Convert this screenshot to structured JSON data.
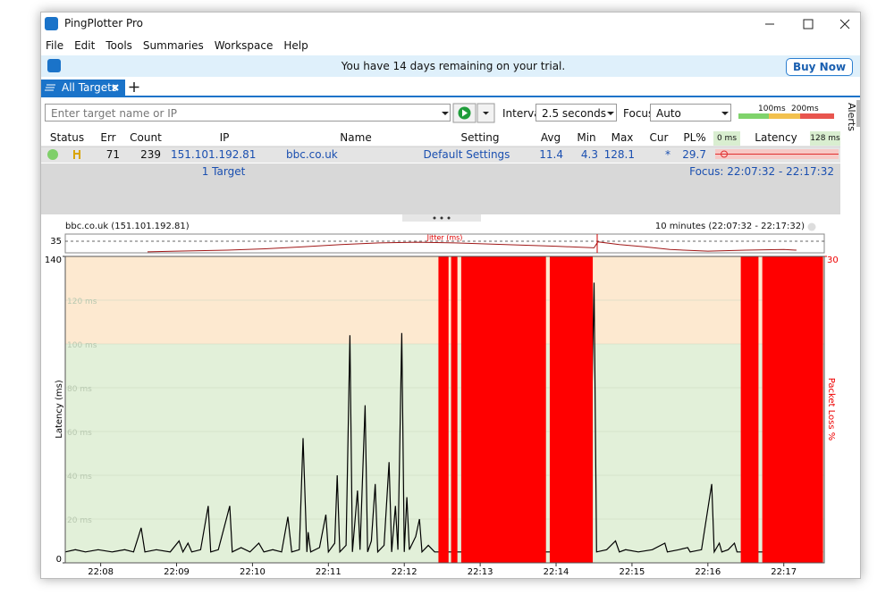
{
  "window": {
    "title": "PingPlotter Pro"
  },
  "menu": [
    "File",
    "Edit",
    "Tools",
    "Summaries",
    "Workspace",
    "Help"
  ],
  "trial": {
    "message": "You have 14 days remaining on your trial.",
    "button": "Buy Now"
  },
  "tabs": {
    "active": "All Targets"
  },
  "side_tab": "Alerts",
  "toolbar": {
    "target_placeholder": "Enter target name or IP",
    "interval_label": "Interval",
    "interval": "2.5 seconds",
    "focus_label": "Focus",
    "focus": "Auto",
    "scale": [
      "100ms",
      "200ms"
    ]
  },
  "table": {
    "columns": [
      "Status",
      "Err",
      "Count",
      "IP",
      "Name",
      "Setting",
      "Avg",
      "Min",
      "Max",
      "Cur",
      "PL%",
      "Latency"
    ],
    "latency_min": "0 ms",
    "latency_max": "128 ms",
    "rows": [
      [
        71,
        239,
        "151.101.192.81",
        "bbc.co.uk",
        "Default Settings",
        11.4,
        4.3,
        128.1,
        "*",
        29.7
      ]
    ],
    "footer": "1 Target",
    "focus": "Focus: 22:07:32 - 22:17:32"
  },
  "graph": {
    "title": "bbc.co.uk (151.101.192.81)",
    "range": "10 minutes (22:07:32 - 22:17:32)",
    "xlim": [
      "22:07:32",
      "22:17:32"
    ],
    "xticks": [
      "22:08",
      "22:09",
      "22:10",
      "22:11",
      "22:12",
      "22:13",
      "22:14",
      "22:15",
      "22:16",
      "22:17"
    ],
    "jitter": {
      "label": "Jitter (ms)",
      "ylim": [
        0,
        35
      ],
      "yticks": [
        35
      ],
      "x": [
        "22:08:37",
        "22:09:00",
        "22:09:40",
        "22:10:10",
        "22:10:40",
        "22:11:10",
        "22:11:40",
        "22:12:10",
        "22:12:40",
        "22:13:20",
        "22:14:00",
        "22:14:30",
        "22:14:33",
        "22:14:50",
        "22:15:10",
        "22:15:30",
        "22:16:00",
        "22:16:30",
        "22:17:00",
        "22:17:10"
      ],
      "values": [
        3,
        5,
        8,
        12,
        18,
        25,
        30,
        32,
        30,
        25,
        20,
        15,
        33,
        25,
        18,
        10,
        5,
        8,
        10,
        8
      ]
    },
    "latency": {
      "y_label": "Latency (ms)",
      "ylim": [
        0,
        140
      ],
      "yticks": [
        0,
        140
      ],
      "grid": [
        {
          "value": 20,
          "label": "20 ms"
        },
        {
          "value": 40,
          "label": "40 ms"
        },
        {
          "value": 60,
          "label": "60 ms"
        },
        {
          "value": 80,
          "label": "80 ms"
        },
        {
          "value": 100,
          "label": "100 ms"
        },
        {
          "value": 120,
          "label": "120 ms"
        }
      ],
      "x": [
        "22:07:32",
        "22:07:40",
        "22:07:48",
        "22:07:58",
        "22:08:09",
        "22:08:19",
        "22:08:26",
        "22:08:32",
        "22:08:35",
        "22:08:44",
        "22:08:55",
        "22:09:02",
        "22:09:05",
        "22:09:09",
        "22:09:12",
        "22:09:19",
        "22:09:25",
        "22:09:27",
        "22:09:33",
        "22:09:42",
        "22:09:44",
        "22:09:51",
        "22:09:58",
        "22:10:05",
        "22:10:09",
        "22:10:16",
        "22:10:23",
        "22:10:28",
        "22:10:31",
        "22:10:37",
        "22:10:40",
        "22:10:43",
        "22:10:44",
        "22:10:46",
        "22:10:53",
        "22:10:58",
        "22:11:00",
        "22:11:05",
        "22:11:07",
        "22:11:09",
        "22:11:14",
        "22:11:17",
        "22:11:19",
        "22:11:23",
        "22:11:25",
        "22:11:29",
        "22:11:31",
        "22:11:34",
        "22:11:37",
        "22:11:39",
        "22:11:44",
        "22:11:48",
        "22:11:50",
        "22:11:53",
        "22:11:55",
        "22:11:58",
        "22:12:00",
        "22:12:02",
        "22:12:04",
        "22:12:09",
        "22:12:12",
        "22:12:14",
        "22:12:19",
        "22:12:24",
        "22:12:33",
        "22:12:42",
        "22:13:44",
        "22:13:52",
        "22:14:26",
        "22:14:30",
        "22:14:32",
        "22:14:40",
        "22:14:47",
        "22:14:50",
        "22:14:55",
        "22:15:05",
        "22:15:16",
        "22:15:26",
        "22:15:28",
        "22:15:37",
        "22:15:44",
        "22:15:46",
        "22:15:55",
        "22:16:03",
        "22:16:05",
        "22:16:09",
        "22:16:11",
        "22:16:16",
        "22:16:21",
        "22:16:23",
        "22:16:30",
        "22:17:02",
        "22:17:31"
      ],
      "values": [
        5,
        6,
        5,
        6,
        5,
        6,
        5,
        16,
        5,
        6,
        5,
        10,
        5,
        9,
        5,
        6,
        26,
        5,
        6,
        26,
        5,
        7,
        5,
        9,
        5,
        6,
        5,
        21,
        5,
        6,
        57,
        5,
        14,
        5,
        7,
        22,
        5,
        9,
        40,
        5,
        8,
        104,
        5,
        33,
        6,
        72,
        5,
        10,
        36,
        5,
        8,
        46,
        5,
        26,
        6,
        105,
        5,
        30,
        6,
        12,
        20,
        5,
        8,
        5,
        5,
        5,
        5,
        5,
        5,
        128,
        5,
        6,
        10,
        5,
        6,
        5,
        6,
        9,
        5,
        6,
        7,
        5,
        6,
        36,
        5,
        9,
        5,
        6,
        9,
        5,
        5,
        5,
        5
      ]
    },
    "loss": {
      "y_label": "Packet Loss %",
      "ylim": [
        0,
        30
      ],
      "yticks": [
        30
      ],
      "start": [
        "22:12:27",
        "22:12:37",
        "22:12:45",
        "22:13:55",
        "22:16:26",
        "22:16:43"
      ],
      "end": [
        "22:12:35",
        "22:12:42",
        "22:13:52",
        "22:14:29",
        "22:16:40",
        "22:17:31"
      ],
      "values": [
        100,
        100,
        100,
        100,
        100,
        100
      ]
    }
  }
}
